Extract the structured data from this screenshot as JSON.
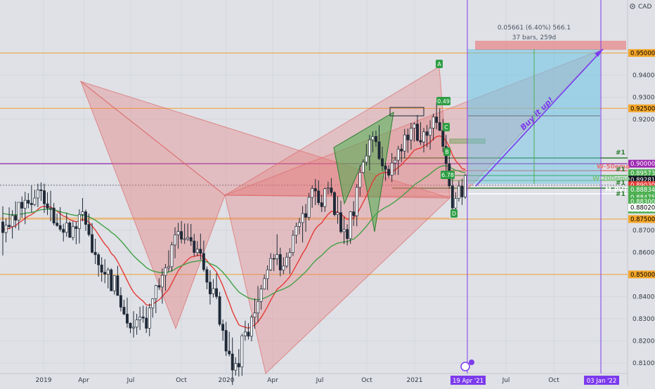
{
  "chart_data": {
    "type": "candlestick",
    "currency_label": "CAD",
    "ylim": [
      0.8,
      0.95
    ],
    "y_ticks": [
      {
        "value": 0.81,
        "label": "0.81000"
      },
      {
        "value": 0.82,
        "label": "0.82000"
      },
      {
        "value": 0.83,
        "label": "0.83000"
      },
      {
        "value": 0.84,
        "label": "0.84000"
      },
      {
        "value": 0.86,
        "label": "0.86000"
      },
      {
        "value": 0.87,
        "label": "0.87000"
      },
      {
        "value": 0.92,
        "label": "0.92000"
      },
      {
        "value": 0.93,
        "label": "0.93000"
      },
      {
        "value": 0.94,
        "label": "0.94000"
      }
    ],
    "x_ticks": [
      "2019",
      "Apr",
      "Jul",
      "Oct",
      "2020",
      "Apr",
      "Jul",
      "Oct",
      "2021",
      "Jul",
      "Oct"
    ],
    "x_highlight_labels": [
      "19 Apr '21",
      "03 Jan '22"
    ],
    "horizontal_levels": [
      {
        "value": 0.95,
        "label": "0.95000",
        "color": "#f0a030"
      },
      {
        "value": 0.925,
        "label": "0.92500",
        "color": "#f0a030"
      },
      {
        "value": 0.9,
        "label": "0.90000",
        "color": "#8e24aa"
      },
      {
        "value": 0.875,
        "label": "0.87500",
        "color": "#f0a030"
      },
      {
        "value": 0.85,
        "label": "0.85000",
        "color": "#f0a030"
      }
    ],
    "price_labels": [
      {
        "value": 0.95,
        "label": "0.95000",
        "bg": "#f4a629",
        "fg": "#000000"
      },
      {
        "value": 0.925,
        "label": "0.92500",
        "bg": "#f4a629",
        "fg": "#000000"
      },
      {
        "value": 0.9,
        "label": "0.90000",
        "bg": "#9c27b0",
        "fg": "#ffffff"
      },
      {
        "value": 0.89573,
        "label": "0.89573",
        "bg": "#4caf50",
        "fg": "#ffffff"
      },
      {
        "value": 0.89281,
        "label": "0.89281",
        "bg": "#131722",
        "fg": "#ffffff"
      },
      {
        "value": 0.89281,
        "label": "0.89281",
        "bg": "#4caf50",
        "fg": "#ffffff"
      },
      {
        "value": 0.89281,
        "label": "0.89281",
        "bg": "#4caf50",
        "fg": "#ffffff"
      },
      {
        "value": 0.8903,
        "label": "0.89030",
        "bg": "#e53935",
        "fg": "#ffffff"
      },
      {
        "value": 0.89029,
        "label": "0.89029",
        "bg": "#4caf50",
        "fg": "#ffffff"
      },
      {
        "value": 0.88834,
        "label": "0.88834",
        "bg": "#4caf50",
        "fg": "#ffffff"
      },
      {
        "value": 0.88475,
        "label": "0.88475",
        "bg": "#4caf50",
        "fg": "#ffffff"
      },
      {
        "value": 0.8848,
        "label": "0.88480",
        "bg": "#4caf50",
        "fg": "#ffffff"
      },
      {
        "value": 0.883,
        "label": "0.88300",
        "bg": "#4caf50",
        "fg": "#ffffff"
      },
      {
        "value": 0.88282,
        "label": "0.88282",
        "bg": "#4caf50",
        "fg": "#ffffff"
      },
      {
        "value": 0.8802,
        "label": "0.88020",
        "bg": "#ffffff",
        "fg": "#000000"
      },
      {
        "value": 0.875,
        "label": "0.87500",
        "bg": "#f4a629",
        "fg": "#000000"
      },
      {
        "value": 0.85,
        "label": "0.85000",
        "bg": "#f4a629",
        "fg": "#000000"
      }
    ],
    "position_tool": {
      "label_line1": "0.05661 (6.40%) 566.1",
      "label_line2": "37 bars, 259d"
    },
    "pattern_points": [
      "A",
      "B",
      "C",
      "D"
    ],
    "pattern_values": [
      "0.49",
      "6.78"
    ],
    "annotation": "Buy it up!",
    "line_labels": [
      "#1",
      "W-50ema",
      "#1",
      "W-200ema",
      "#1",
      "M-PVT",
      "#1"
    ],
    "moving_averages": [
      {
        "label": "W-50ema",
        "color": "#e53935"
      },
      {
        "label": "W-200ema",
        "color": "#43a047"
      }
    ],
    "ohlc": [
      [
        0.8737,
        0.8808,
        0.8586,
        0.8689
      ],
      [
        0.8689,
        0.8753,
        0.8645,
        0.8722
      ],
      [
        0.8722,
        0.8803,
        0.8706,
        0.8716
      ],
      [
        0.8716,
        0.879,
        0.8662,
        0.8766
      ],
      [
        0.8766,
        0.883,
        0.8708,
        0.8745
      ],
      [
        0.8745,
        0.8824,
        0.87,
        0.8826
      ],
      [
        0.8826,
        0.8852,
        0.8756,
        0.8799
      ],
      [
        0.8799,
        0.8873,
        0.8727,
        0.8835
      ],
      [
        0.8835,
        0.8867,
        0.8799,
        0.8821
      ],
      [
        0.8821,
        0.8901,
        0.878,
        0.8815
      ],
      [
        0.8815,
        0.8883,
        0.8809,
        0.8845
      ],
      [
        0.8845,
        0.891,
        0.8804,
        0.8882
      ],
      [
        0.8882,
        0.8916,
        0.8832,
        0.8878
      ],
      [
        0.8878,
        0.891,
        0.8778,
        0.8819
      ],
      [
        0.8819,
        0.8871,
        0.8768,
        0.8799
      ],
      [
        0.8799,
        0.8878,
        0.874,
        0.88
      ],
      [
        0.88,
        0.8822,
        0.8722,
        0.8732
      ],
      [
        0.8732,
        0.8775,
        0.8715,
        0.8721
      ],
      [
        0.8721,
        0.8804,
        0.8694,
        0.8704
      ],
      [
        0.8704,
        0.8729,
        0.8649,
        0.869
      ],
      [
        0.869,
        0.8778,
        0.867,
        0.8733
      ],
      [
        0.8733,
        0.874,
        0.8666,
        0.8667
      ],
      [
        0.8667,
        0.874,
        0.8654,
        0.8716
      ],
      [
        0.8716,
        0.8739,
        0.8636,
        0.8707
      ],
      [
        0.8707,
        0.8794,
        0.864,
        0.8771
      ],
      [
        0.8771,
        0.8845,
        0.874,
        0.8783
      ],
      [
        0.8783,
        0.8793,
        0.8697,
        0.8726
      ],
      [
        0.8726,
        0.8775,
        0.8671,
        0.868
      ],
      [
        0.868,
        0.8732,
        0.8594,
        0.86
      ],
      [
        0.86,
        0.8661,
        0.8547,
        0.8589
      ],
      [
        0.8589,
        0.8598,
        0.849,
        0.8543
      ],
      [
        0.8543,
        0.8578,
        0.8467,
        0.851
      ],
      [
        0.851,
        0.8569,
        0.846,
        0.8501
      ],
      [
        0.8501,
        0.8531,
        0.8437,
        0.8521
      ],
      [
        0.8521,
        0.8528,
        0.8425,
        0.8426
      ],
      [
        0.8426,
        0.8496,
        0.8409,
        0.8494
      ],
      [
        0.8494,
        0.8539,
        0.8405,
        0.8405
      ],
      [
        0.8405,
        0.8442,
        0.8333,
        0.8352
      ],
      [
        0.8352,
        0.8386,
        0.8316,
        0.8321
      ],
      [
        0.8321,
        0.8395,
        0.826,
        0.828
      ],
      [
        0.828,
        0.8283,
        0.8235,
        0.8258
      ],
      [
        0.8258,
        0.8334,
        0.8215,
        0.8262
      ],
      [
        0.8262,
        0.8322,
        0.8228,
        0.8295
      ],
      [
        0.8295,
        0.8354,
        0.8249,
        0.8308
      ],
      [
        0.8308,
        0.8359,
        0.8282,
        0.8303
      ],
      [
        0.8303,
        0.8356,
        0.8236,
        0.8257
      ],
      [
        0.8257,
        0.8368,
        0.8221,
        0.8349
      ],
      [
        0.8349,
        0.8392,
        0.8305,
        0.839
      ],
      [
        0.839,
        0.8453,
        0.8325,
        0.845
      ],
      [
        0.845,
        0.8483,
        0.843,
        0.8443
      ],
      [
        0.8443,
        0.8527,
        0.8368,
        0.8496
      ],
      [
        0.8496,
        0.8547,
        0.8426,
        0.853
      ],
      [
        0.853,
        0.8609,
        0.8512,
        0.8535
      ],
      [
        0.8535,
        0.8647,
        0.8513,
        0.8633
      ],
      [
        0.8633,
        0.8713,
        0.8573,
        0.8679
      ],
      [
        0.8679,
        0.8733,
        0.8616,
        0.8694
      ],
      [
        0.8694,
        0.8741,
        0.864,
        0.8659
      ],
      [
        0.8659,
        0.873,
        0.8638,
        0.8661
      ],
      [
        0.8661,
        0.873,
        0.8651,
        0.8667
      ],
      [
        0.8667,
        0.8728,
        0.8629,
        0.8651
      ],
      [
        0.8651,
        0.8683,
        0.8583,
        0.8599
      ],
      [
        0.8599,
        0.865,
        0.8582,
        0.8614
      ],
      [
        0.8614,
        0.8684,
        0.8567,
        0.8595
      ],
      [
        0.8595,
        0.8653,
        0.8513,
        0.8522
      ],
      [
        0.8522,
        0.8536,
        0.8433,
        0.8465
      ],
      [
        0.8465,
        0.8519,
        0.8364,
        0.8412
      ],
      [
        0.8412,
        0.8479,
        0.8396,
        0.8436
      ],
      [
        0.8436,
        0.8505,
        0.8389,
        0.84
      ],
      [
        0.84,
        0.8421,
        0.8266,
        0.8275
      ],
      [
        0.8275,
        0.8296,
        0.8201,
        0.8247
      ],
      [
        0.8247,
        0.8286,
        0.8132,
        0.8154
      ],
      [
        0.8154,
        0.8241,
        0.813,
        0.8141
      ],
      [
        0.8141,
        0.8215,
        0.8001,
        0.8068
      ],
      [
        0.8068,
        0.8126,
        0.8043,
        0.8098
      ],
      [
        0.8098,
        0.8163,
        0.8039,
        0.8082
      ],
      [
        0.8082,
        0.8232,
        0.8042,
        0.8223
      ],
      [
        0.8223,
        0.8291,
        0.8201,
        0.824
      ],
      [
        0.824,
        0.828,
        0.8206,
        0.8221
      ],
      [
        0.8221,
        0.8318,
        0.8198,
        0.8307
      ],
      [
        0.8307,
        0.8392,
        0.8255,
        0.8326
      ],
      [
        0.8326,
        0.8448,
        0.8283,
        0.8378
      ],
      [
        0.8378,
        0.8453,
        0.8341,
        0.8434
      ],
      [
        0.8434,
        0.85,
        0.8431,
        0.8481
      ],
      [
        0.8481,
        0.8541,
        0.8429,
        0.8521
      ],
      [
        0.8521,
        0.8596,
        0.8515,
        0.8572
      ],
      [
        0.8572,
        0.8593,
        0.8515,
        0.8571
      ],
      [
        0.8571,
        0.8681,
        0.8542,
        0.859
      ],
      [
        0.859,
        0.8621,
        0.8491,
        0.852
      ],
      [
        0.852,
        0.8577,
        0.8501,
        0.8538
      ],
      [
        0.8538,
        0.8599,
        0.8528,
        0.8578
      ],
      [
        0.8578,
        0.8619,
        0.8502,
        0.8599
      ],
      [
        0.8599,
        0.87,
        0.8583,
        0.8677
      ],
      [
        0.8677,
        0.8734,
        0.8639,
        0.8717
      ],
      [
        0.8717,
        0.8755,
        0.8681,
        0.8734
      ],
      [
        0.8734,
        0.8809,
        0.8644,
        0.8775
      ],
      [
        0.8775,
        0.8818,
        0.8693,
        0.8758
      ],
      [
        0.8758,
        0.8869,
        0.8744,
        0.8848
      ],
      [
        0.8848,
        0.8902,
        0.8801,
        0.8888
      ],
      [
        0.8888,
        0.8931,
        0.8813,
        0.8877
      ],
      [
        0.8877,
        0.8925,
        0.8812,
        0.8824
      ],
      [
        0.8824,
        0.886,
        0.8782,
        0.8806
      ],
      [
        0.8806,
        0.8892,
        0.8783,
        0.8887
      ],
      [
        0.8887,
        0.8919,
        0.8861,
        0.8891
      ],
      [
        0.8891,
        0.8935,
        0.8857,
        0.887
      ],
      [
        0.887,
        0.8875,
        0.8762,
        0.877
      ],
      [
        0.877,
        0.8853,
        0.8729,
        0.8779
      ],
      [
        0.8779,
        0.8833,
        0.8685,
        0.8693
      ],
      [
        0.8693,
        0.876,
        0.8637,
        0.8703
      ],
      [
        0.8703,
        0.8727,
        0.8631,
        0.8662
      ],
      [
        0.8662,
        0.8786,
        0.8638,
        0.8783
      ],
      [
        0.8783,
        0.8831,
        0.8719,
        0.8765
      ],
      [
        0.8765,
        0.8909,
        0.8717,
        0.8893
      ],
      [
        0.8893,
        0.8993,
        0.8853,
        0.896
      ],
      [
        0.896,
        0.902,
        0.8957,
        0.9007
      ],
      [
        0.9007,
        0.9089,
        0.8991,
        0.9035
      ],
      [
        0.9035,
        0.913,
        0.8968,
        0.9108
      ],
      [
        0.9108,
        0.9146,
        0.9051,
        0.9123
      ],
      [
        0.9123,
        0.915,
        0.9076,
        0.9099
      ],
      [
        0.9099,
        0.9174,
        0.9016,
        0.9023
      ],
      [
        0.9023,
        0.9077,
        0.8967,
        0.899
      ],
      [
        0.899,
        0.9005,
        0.8923,
        0.8975
      ],
      [
        0.8975,
        0.8993,
        0.8936,
        0.8948
      ],
      [
        0.8948,
        0.9048,
        0.8917,
        0.9003
      ],
      [
        0.9003,
        0.9032,
        0.8949,
        0.9016
      ],
      [
        0.9016,
        0.9081,
        0.8949,
        0.9066
      ],
      [
        0.9066,
        0.9089,
        0.9007,
        0.9057
      ],
      [
        0.9057,
        0.9157,
        0.9024,
        0.913
      ],
      [
        0.913,
        0.9159,
        0.905,
        0.9107
      ],
      [
        0.9107,
        0.9185,
        0.9064,
        0.916
      ],
      [
        0.916,
        0.9186,
        0.91,
        0.9179
      ],
      [
        0.9179,
        0.922,
        0.91,
        0.9105
      ],
      [
        0.9105,
        0.9188,
        0.9084,
        0.9098
      ],
      [
        0.9098,
        0.9162,
        0.9051,
        0.9144
      ],
      [
        0.9144,
        0.9175,
        0.9075,
        0.9128
      ],
      [
        0.9128,
        0.9196,
        0.9063,
        0.9161
      ],
      [
        0.9161,
        0.9226,
        0.9105,
        0.9211
      ],
      [
        0.9211,
        0.9276,
        0.9155,
        0.9186
      ],
      [
        0.9186,
        0.925,
        0.9149,
        0.915
      ],
      [
        0.915,
        0.9202,
        0.9052,
        0.9078
      ],
      [
        0.9078,
        0.913,
        0.8969,
        0.9
      ],
      [
        0.9,
        0.9034,
        0.8887,
        0.89
      ],
      [
        0.89,
        0.8949,
        0.879,
        0.88
      ],
      [
        0.88,
        0.8871,
        0.8757,
        0.8843
      ],
      [
        0.8843,
        0.8923,
        0.8829,
        0.8899
      ],
      [
        0.8899,
        0.8932,
        0.8814,
        0.885
      ],
      [
        0.885,
        0.8954,
        0.8842,
        0.8947
      ]
    ]
  }
}
